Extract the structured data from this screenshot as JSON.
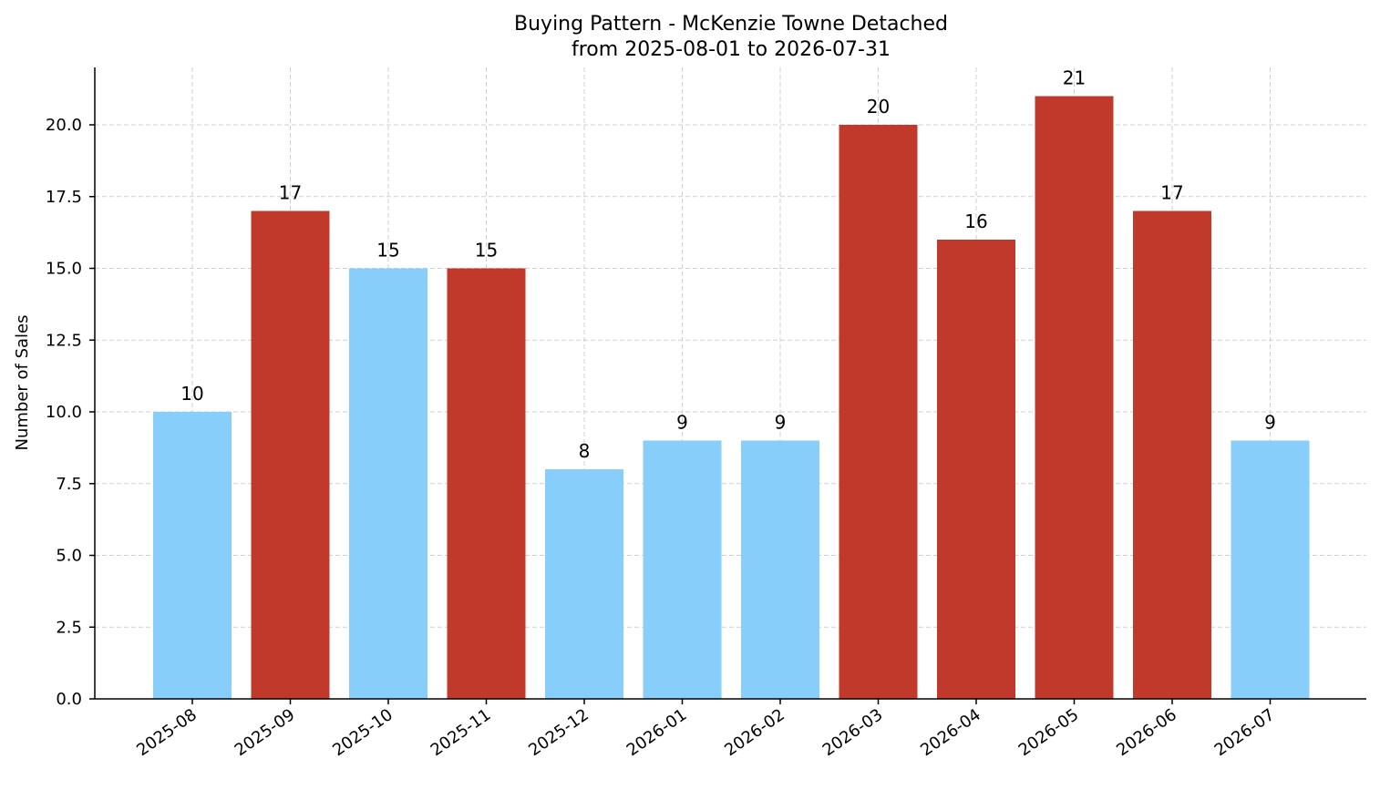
{
  "chart_data": {
    "type": "bar",
    "title": "Buying Pattern - McKenzie Towne Detached",
    "subtitle": "from 2025-08-01 to 2026-07-31",
    "xlabel": "",
    "ylabel": "Number of Sales",
    "ylim": [
      0,
      22
    ],
    "yticks": [
      "0.0",
      "2.5",
      "5.0",
      "7.5",
      "10.0",
      "12.5",
      "15.0",
      "17.5",
      "20.0"
    ],
    "categories": [
      "2025-08",
      "2025-09",
      "2025-10",
      "2025-11",
      "2025-12",
      "2026-01",
      "2026-02",
      "2026-03",
      "2026-04",
      "2026-05",
      "2026-06",
      "2026-07"
    ],
    "values": [
      10,
      17,
      15,
      15,
      8,
      9,
      9,
      20,
      16,
      21,
      17,
      9
    ],
    "bar_colors": [
      "#87cefa",
      "#c0392b",
      "#87cefa",
      "#c0392b",
      "#87cefa",
      "#87cefa",
      "#87cefa",
      "#c0392b",
      "#c0392b",
      "#c0392b",
      "#c0392b",
      "#87cefa"
    ],
    "grid": true,
    "legend": "none"
  }
}
